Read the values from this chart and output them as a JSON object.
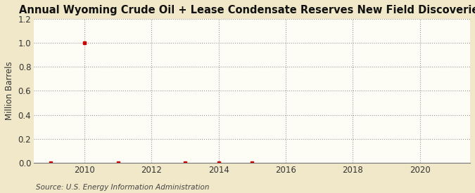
{
  "title": "Annual Wyoming Crude Oil + Lease Condensate Reserves New Field Discoveries",
  "ylabel": "Million Barrels",
  "source": "Source: U.S. Energy Information Administration",
  "fig_background_color": "#F0E8C8",
  "plot_background_color": "#FDFCF5",
  "marker_color": "#CC0000",
  "years": [
    2009,
    2010,
    2011,
    2013,
    2014,
    2015
  ],
  "values": [
    0.0,
    1.0,
    0.0,
    0.0,
    0.0,
    0.0
  ],
  "xlim": [
    2008.5,
    2021.5
  ],
  "ylim": [
    0.0,
    1.2
  ],
  "yticks": [
    0.0,
    0.2,
    0.4,
    0.6,
    0.8,
    1.0,
    1.2
  ],
  "xticks": [
    2010,
    2012,
    2014,
    2016,
    2018,
    2020
  ],
  "title_fontsize": 10.5,
  "label_fontsize": 8.5,
  "tick_fontsize": 8.5,
  "source_fontsize": 7.5
}
